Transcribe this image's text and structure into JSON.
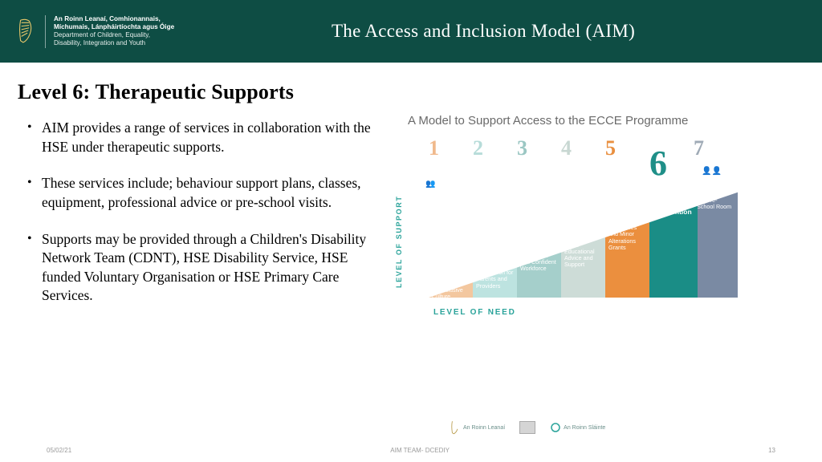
{
  "header": {
    "dept_ga1": "An Roinn Leanaí, Comhionannais,",
    "dept_ga2": "Míchumais, Lánpháirtíochta agus Óige",
    "dept_en1": "Department of Children, Equality,",
    "dept_en2": "Disability, Integration and Youth",
    "title": "The Access and Inclusion Model (AIM)"
  },
  "heading": "Level 6: Therapeutic Supports",
  "bullets": [
    "AIM provides a range of services in collaboration with the HSE under therapeutic supports.",
    "These services include; behaviour support plans, classes, equipment, professional advice or pre-school visits.",
    "Supports may be provided through a Children's Disability Network Team (CDNT), HSE Disability Service, HSE funded Voluntary Organisation or HSE Primary Care Services."
  ],
  "model": {
    "title": "A Model to Support Access to the ECCE Programme",
    "ylabel": "LEVEL OF SUPPORT",
    "xlabel": "LEVEL OF NEED",
    "levels": [
      {
        "n": "1",
        "num_color": "#f0b98c",
        "bar_color": "#f3c79f",
        "label": "An Inclusive Culture"
      },
      {
        "n": "2",
        "num_color": "#b7dcd9",
        "bar_color": "#bde3e0",
        "label": "Information for Parents and Providers"
      },
      {
        "n": "3",
        "num_color": "#9bc7c3",
        "bar_color": "#a5cfcb",
        "label": "A Qualified and Confident Workforce"
      },
      {
        "n": "4",
        "num_color": "#c8d7d2",
        "bar_color": "#cddcd7",
        "label": "Expert Early Years Educational Advice and Support"
      },
      {
        "n": "5",
        "num_color": "#e98f3f",
        "bar_color": "#eb8f3e",
        "label": "Equipment, Appliances and Minor Alterations Grants"
      },
      {
        "n": "6",
        "num_color": "#1f8f88",
        "bar_color": "#1a8d86",
        "label": "Therapeutic Intervention"
      },
      {
        "n": "7",
        "num_color": "#9faab6",
        "bar_color": "#7a8aa3",
        "label": "Additional Assistance in the Pre-School Room"
      }
    ]
  },
  "footer": {
    "date": "05/02/21",
    "center": "AIM TEAM- DCEDIY",
    "page": "13"
  },
  "minilogos": {
    "a": "An Roinn Leanaí",
    "b": "",
    "c": "An Roinn Sláinte"
  }
}
